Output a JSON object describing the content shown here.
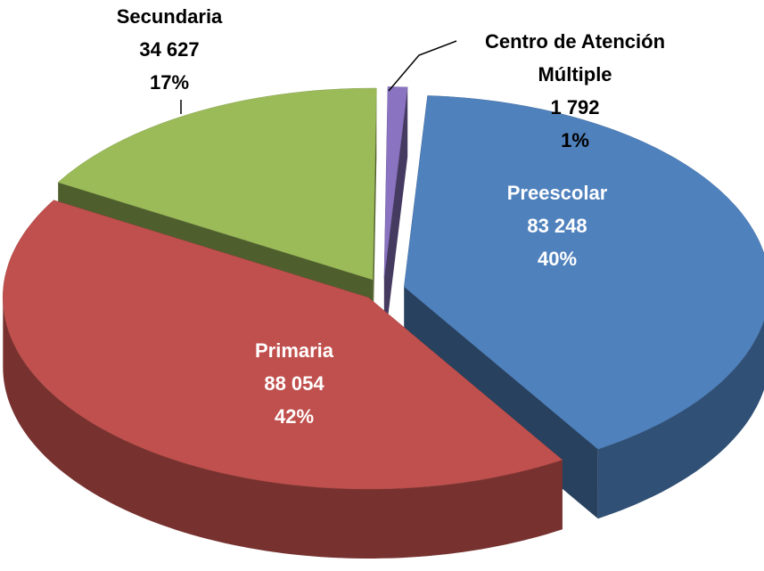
{
  "chart_data": {
    "type": "pie3d",
    "categories": [
      "Centro de Atención Múltiple",
      "Preescolar",
      "Primaria",
      "Secundaria"
    ],
    "values": [
      1792,
      83248,
      88054,
      34627
    ],
    "value_labels": [
      "1 792",
      "83 248",
      "88 054",
      "34 627"
    ],
    "percent_labels": [
      "1%",
      "40%",
      "42%",
      "17%"
    ],
    "colors": [
      "#8a73c0",
      "#4f81bd",
      "#c0504d",
      "#9bbb59"
    ]
  }
}
